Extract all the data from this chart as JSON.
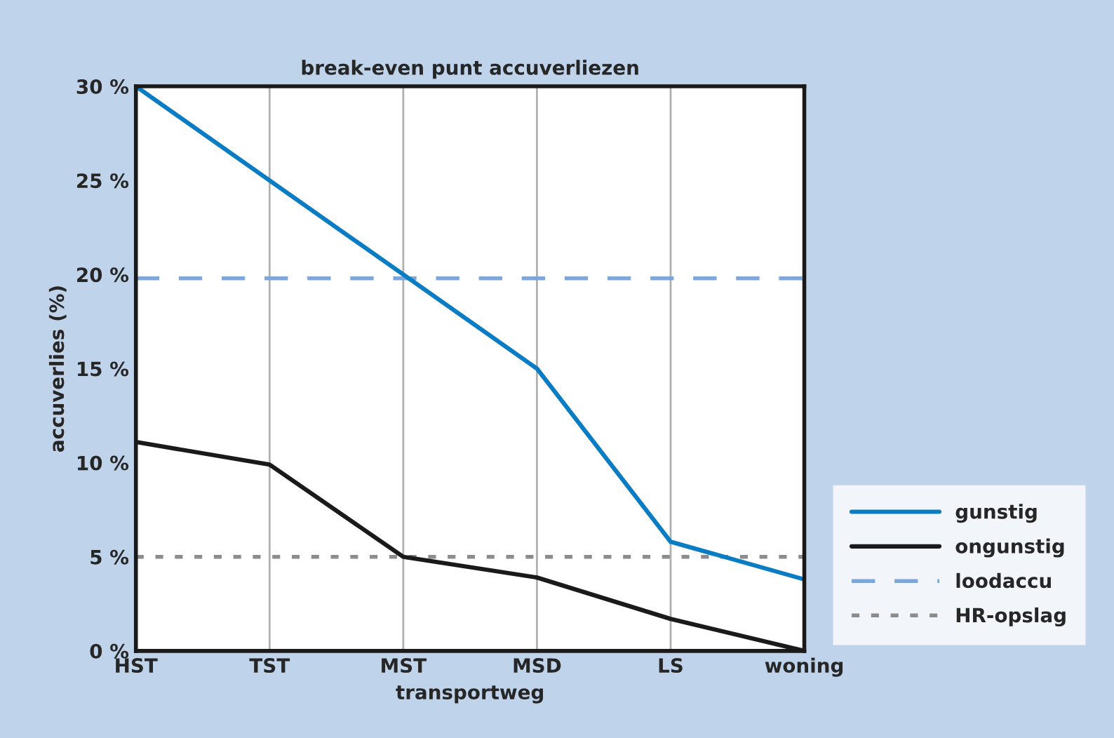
{
  "chart_data": {
    "type": "line",
    "title": "break-even punt accuverliezen",
    "xlabel": "transportweg",
    "ylabel": "accuverlies (%)",
    "categories": [
      "HST",
      "TST",
      "MST",
      "MSD",
      "LS",
      "woning"
    ],
    "series": [
      {
        "name": "gunstig",
        "color": "#0a7cc4",
        "values": [
          30,
          25,
          20,
          15,
          5.8,
          3.8
        ]
      },
      {
        "name": "ongunstig",
        "color": "#1a1a1a",
        "values": [
          11.1,
          9.9,
          5,
          3.9,
          1.7,
          0
        ]
      }
    ],
    "ref_lines": [
      {
        "axis": "y",
        "value": 19.8,
        "label": "loodaccu",
        "color": "#7ea6d8",
        "line_style": "dashed"
      },
      {
        "axis": "y",
        "value": 5,
        "label": "HR-opslag",
        "color": "#8c8c8c",
        "line_style": "dotted"
      }
    ],
    "ylim": [
      0,
      30
    ],
    "yticks": [
      {
        "value": 0,
        "label": "0 %"
      },
      {
        "value": 5,
        "label": "5 %"
      },
      {
        "value": 10,
        "label": "10 %"
      },
      {
        "value": 15,
        "label": "15 %"
      },
      {
        "value": 20,
        "label": "20 %"
      },
      {
        "value": 25,
        "label": "25 %"
      },
      {
        "value": 30,
        "label": "30 %"
      }
    ],
    "grid": "x",
    "legend": "bottom right",
    "marker": "none",
    "line_style": "solid"
  }
}
